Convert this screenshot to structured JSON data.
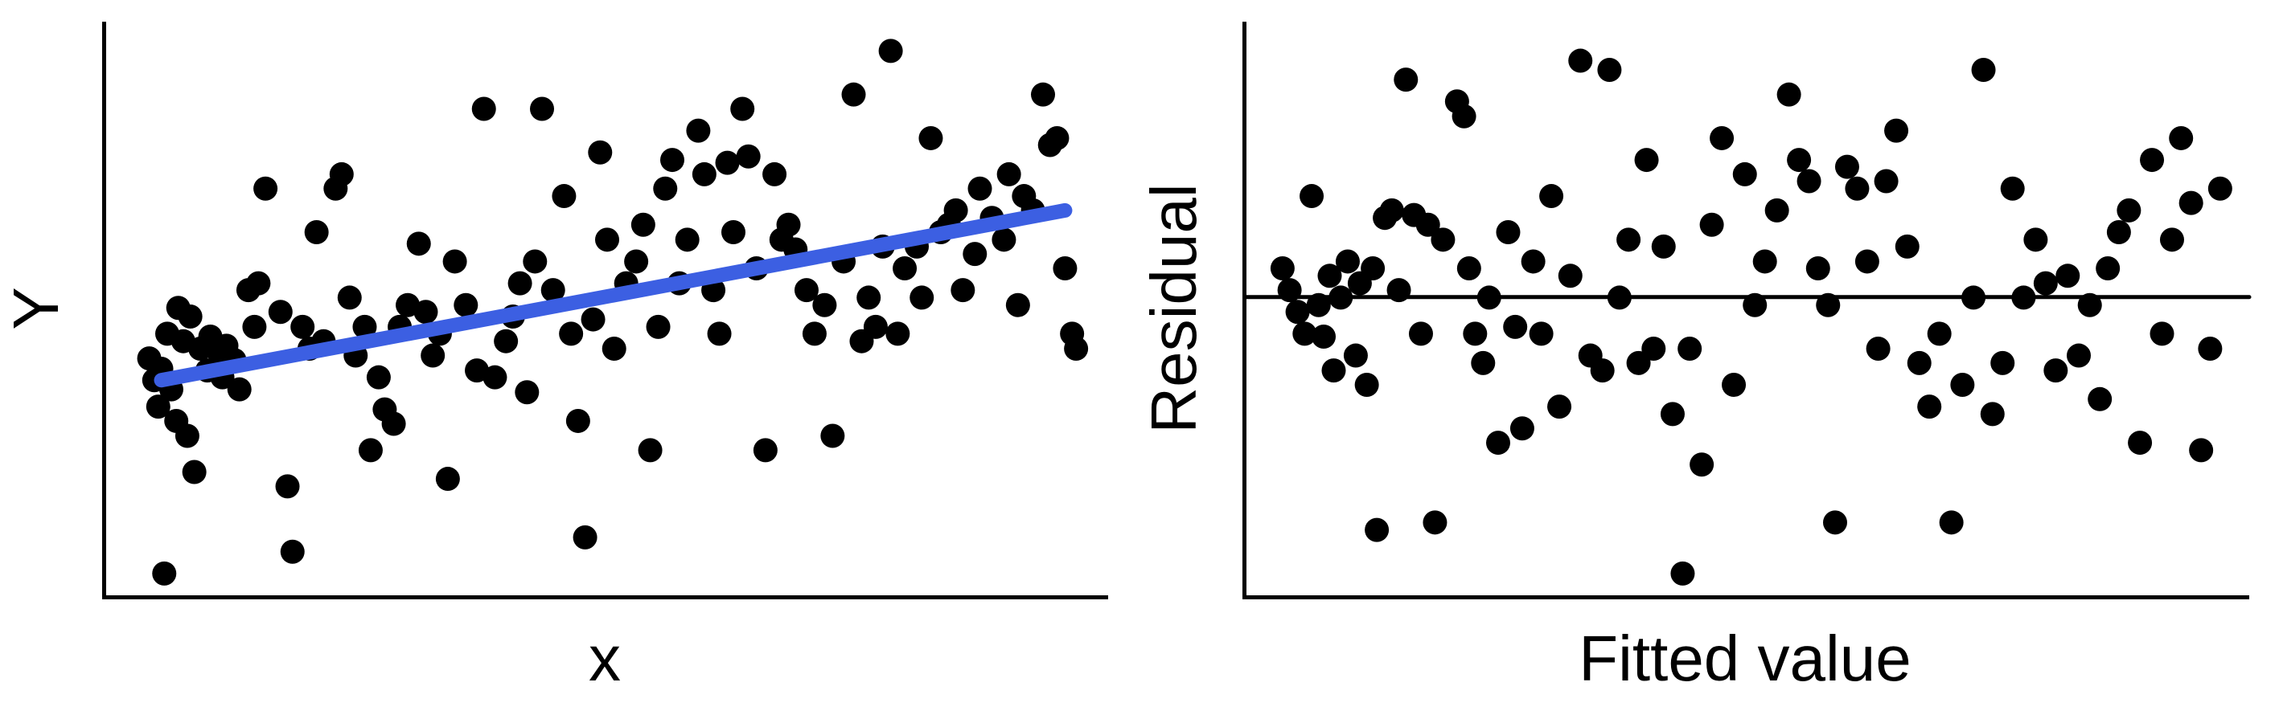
{
  "figure": {
    "background": "#ffffff",
    "point_color": "#000000",
    "fit_line_color": "#3C5FE2"
  },
  "chart_data": [
    {
      "type": "scatter",
      "title": "",
      "xlabel": "x",
      "ylabel": "Y",
      "xlim": [
        0,
        1
      ],
      "ylim": [
        0,
        1
      ],
      "ticks": "none",
      "grid": false,
      "legend": "none",
      "point_color": "#000000",
      "point_radius": 15,
      "fit_line": {
        "x1": 0.055,
        "y1": 0.375,
        "x2": 0.957,
        "y2": 0.671,
        "color": "#3C5FE2",
        "width": 18
      },
      "points": [
        [
          0.043,
          0.413
        ],
        [
          0.048,
          0.375
        ],
        [
          0.052,
          0.329
        ],
        [
          0.055,
          0.395
        ],
        [
          0.061,
          0.456
        ],
        [
          0.065,
          0.359
        ],
        [
          0.07,
          0.304
        ],
        [
          0.072,
          0.501
        ],
        [
          0.077,
          0.443
        ],
        [
          0.081,
          0.278
        ],
        [
          0.084,
          0.486
        ],
        [
          0.088,
          0.215
        ],
        [
          0.094,
          0.43
        ],
        [
          0.058,
          0.038
        ],
        [
          0.101,
          0.392
        ],
        [
          0.104,
          0.451
        ],
        [
          0.112,
          0.425
        ],
        [
          0.116,
          0.38
        ],
        [
          0.12,
          0.435
        ],
        [
          0.128,
          0.41
        ],
        [
          0.133,
          0.359
        ],
        [
          0.142,
          0.532
        ],
        [
          0.148,
          0.468
        ],
        [
          0.152,
          0.544
        ],
        [
          0.159,
          0.709
        ],
        [
          0.174,
          0.494
        ],
        [
          0.181,
          0.19
        ],
        [
          0.186,
          0.076
        ],
        [
          0.196,
          0.468
        ],
        [
          0.203,
          0.43
        ],
        [
          0.21,
          0.633
        ],
        [
          0.217,
          0.443
        ],
        [
          0.229,
          0.709
        ],
        [
          0.235,
          0.734
        ],
        [
          0.243,
          0.519
        ],
        [
          0.249,
          0.418
        ],
        [
          0.258,
          0.468
        ],
        [
          0.264,
          0.253
        ],
        [
          0.272,
          0.38
        ],
        [
          0.278,
          0.324
        ],
        [
          0.287,
          0.299
        ],
        [
          0.293,
          0.468
        ],
        [
          0.301,
          0.506
        ],
        [
          0.312,
          0.613
        ],
        [
          0.319,
          0.494
        ],
        [
          0.326,
          0.418
        ],
        [
          0.333,
          0.456
        ],
        [
          0.341,
          0.203
        ],
        [
          0.348,
          0.582
        ],
        [
          0.359,
          0.506
        ],
        [
          0.37,
          0.392
        ],
        [
          0.377,
          0.848
        ],
        [
          0.388,
          0.38
        ],
        [
          0.399,
          0.443
        ],
        [
          0.406,
          0.486
        ],
        [
          0.413,
          0.544
        ],
        [
          0.42,
          0.354
        ],
        [
          0.428,
          0.582
        ],
        [
          0.435,
          0.848
        ],
        [
          0.446,
          0.532
        ],
        [
          0.457,
          0.696
        ],
        [
          0.464,
          0.456
        ],
        [
          0.471,
          0.304
        ],
        [
          0.478,
          0.101
        ],
        [
          0.486,
          0.481
        ],
        [
          0.493,
          0.772
        ],
        [
          0.5,
          0.62
        ],
        [
          0.507,
          0.43
        ],
        [
          0.519,
          0.544
        ],
        [
          0.529,
          0.582
        ],
        [
          0.536,
          0.646
        ],
        [
          0.543,
          0.253
        ],
        [
          0.551,
          0.468
        ],
        [
          0.558,
          0.709
        ],
        [
          0.565,
          0.759
        ],
        [
          0.572,
          0.544
        ],
        [
          0.58,
          0.62
        ],
        [
          0.591,
          0.81
        ],
        [
          0.597,
          0.734
        ],
        [
          0.606,
          0.532
        ],
        [
          0.612,
          0.456
        ],
        [
          0.62,
          0.754
        ],
        [
          0.626,
          0.633
        ],
        [
          0.635,
          0.848
        ],
        [
          0.641,
          0.765
        ],
        [
          0.649,
          0.57
        ],
        [
          0.658,
          0.253
        ],
        [
          0.667,
          0.734
        ],
        [
          0.674,
          0.62
        ],
        [
          0.681,
          0.646
        ],
        [
          0.688,
          0.603
        ],
        [
          0.699,
          0.532
        ],
        [
          0.707,
          0.456
        ],
        [
          0.717,
          0.506
        ],
        [
          0.725,
          0.278
        ],
        [
          0.736,
          0.582
        ],
        [
          0.746,
          0.873
        ],
        [
          0.754,
          0.443
        ],
        [
          0.761,
          0.519
        ],
        [
          0.768,
          0.468
        ],
        [
          0.775,
          0.608
        ],
        [
          0.783,
          0.949
        ],
        [
          0.79,
          0.456
        ],
        [
          0.797,
          0.57
        ],
        [
          0.809,
          0.608
        ],
        [
          0.814,
          0.519
        ],
        [
          0.823,
          0.797
        ],
        [
          0.833,
          0.633
        ],
        [
          0.841,
          0.646
        ],
        [
          0.848,
          0.671
        ],
        [
          0.855,
          0.532
        ],
        [
          0.867,
          0.595
        ],
        [
          0.872,
          0.709
        ],
        [
          0.884,
          0.658
        ],
        [
          0.896,
          0.62
        ],
        [
          0.901,
          0.734
        ],
        [
          0.91,
          0.506
        ],
        [
          0.916,
          0.696
        ],
        [
          0.925,
          0.671
        ],
        [
          0.935,
          0.873
        ],
        [
          0.942,
          0.785
        ],
        [
          0.949,
          0.797
        ],
        [
          0.957,
          0.57
        ],
        [
          0.964,
          0.456
        ],
        [
          0.968,
          0.43
        ]
      ]
    },
    {
      "type": "scatter",
      "title": "",
      "xlabel": "Fitted value",
      "ylabel": "Residual",
      "xlim": [
        0,
        1
      ],
      "ylim": [
        0,
        1
      ],
      "ticks": "none",
      "grid": false,
      "legend": "none",
      "point_color": "#000000",
      "point_radius": 15,
      "zero_line": {
        "y": 0.52,
        "color": "#000000",
        "width": 5
      },
      "points": [
        [
          0.036,
          0.57
        ],
        [
          0.043,
          0.532
        ],
        [
          0.051,
          0.494
        ],
        [
          0.058,
          0.456
        ],
        [
          0.065,
          0.696
        ],
        [
          0.072,
          0.506
        ],
        [
          0.077,
          0.451
        ],
        [
          0.083,
          0.557
        ],
        [
          0.087,
          0.392
        ],
        [
          0.094,
          0.519
        ],
        [
          0.101,
          0.582
        ],
        [
          0.109,
          0.418
        ],
        [
          0.113,
          0.544
        ],
        [
          0.12,
          0.367
        ],
        [
          0.126,
          0.57
        ],
        [
          0.13,
          0.114
        ],
        [
          0.138,
          0.658
        ],
        [
          0.145,
          0.671
        ],
        [
          0.152,
          0.532
        ],
        [
          0.159,
          0.899
        ],
        [
          0.167,
          0.663
        ],
        [
          0.174,
          0.456
        ],
        [
          0.181,
          0.646
        ],
        [
          0.188,
          0.127
        ],
        [
          0.196,
          0.62
        ],
        [
          0.21,
          0.861
        ],
        [
          0.217,
          0.835
        ],
        [
          0.222,
          0.57
        ],
        [
          0.228,
          0.456
        ],
        [
          0.236,
          0.405
        ],
        [
          0.242,
          0.519
        ],
        [
          0.251,
          0.266
        ],
        [
          0.261,
          0.633
        ],
        [
          0.268,
          0.468
        ],
        [
          0.275,
          0.291
        ],
        [
          0.286,
          0.582
        ],
        [
          0.294,
          0.456
        ],
        [
          0.304,
          0.696
        ],
        [
          0.312,
          0.329
        ],
        [
          0.323,
          0.557
        ],
        [
          0.333,
          0.932
        ],
        [
          0.343,
          0.418
        ],
        [
          0.355,
          0.392
        ],
        [
          0.362,
          0.916
        ],
        [
          0.372,
          0.519
        ],
        [
          0.381,
          0.62
        ],
        [
          0.391,
          0.405
        ],
        [
          0.399,
          0.759
        ],
        [
          0.406,
          0.43
        ],
        [
          0.416,
          0.608
        ],
        [
          0.425,
          0.316
        ],
        [
          0.435,
          0.038
        ],
        [
          0.442,
          0.43
        ],
        [
          0.454,
          0.228
        ],
        [
          0.464,
          0.646
        ],
        [
          0.474,
          0.797
        ],
        [
          0.486,
          0.367
        ],
        [
          0.497,
          0.734
        ],
        [
          0.507,
          0.506
        ],
        [
          0.517,
          0.582
        ],
        [
          0.529,
          0.671
        ],
        [
          0.541,
          0.873
        ],
        [
          0.551,
          0.759
        ],
        [
          0.561,
          0.722
        ],
        [
          0.57,
          0.57
        ],
        [
          0.58,
          0.506
        ],
        [
          0.587,
          0.127
        ],
        [
          0.599,
          0.747
        ],
        [
          0.609,
          0.709
        ],
        [
          0.619,
          0.582
        ],
        [
          0.63,
          0.43
        ],
        [
          0.638,
          0.722
        ],
        [
          0.648,
          0.81
        ],
        [
          0.659,
          0.608
        ],
        [
          0.671,
          0.405
        ],
        [
          0.681,
          0.329
        ],
        [
          0.691,
          0.456
        ],
        [
          0.703,
          0.127
        ],
        [
          0.714,
          0.367
        ],
        [
          0.725,
          0.519
        ],
        [
          0.735,
          0.916
        ],
        [
          0.744,
          0.316
        ],
        [
          0.754,
          0.405
        ],
        [
          0.764,
          0.709
        ],
        [
          0.775,
          0.519
        ],
        [
          0.787,
          0.62
        ],
        [
          0.797,
          0.544
        ],
        [
          0.807,
          0.392
        ],
        [
          0.819,
          0.557
        ],
        [
          0.83,
          0.418
        ],
        [
          0.841,
          0.506
        ],
        [
          0.851,
          0.342
        ],
        [
          0.859,
          0.57
        ],
        [
          0.87,
          0.633
        ],
        [
          0.88,
          0.671
        ],
        [
          0.891,
          0.266
        ],
        [
          0.903,
          0.759
        ],
        [
          0.913,
          0.456
        ],
        [
          0.923,
          0.62
        ],
        [
          0.932,
          0.797
        ],
        [
          0.942,
          0.684
        ],
        [
          0.952,
          0.253
        ],
        [
          0.961,
          0.43
        ],
        [
          0.971,
          0.709
        ]
      ]
    }
  ]
}
